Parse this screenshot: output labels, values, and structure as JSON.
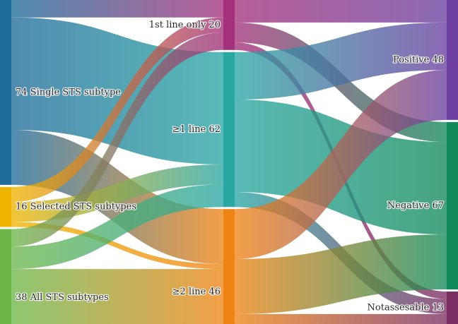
{
  "chart_data": {
    "type": "sankey",
    "title": "",
    "nodes": [
      {
        "id": "single",
        "label": "74 Single STS subtype",
        "column": 0,
        "value": 74,
        "color": "#1f6b9a"
      },
      {
        "id": "selected",
        "label": "16 Selected STS subtypes",
        "column": 0,
        "value": 16,
        "color": "#f0b400"
      },
      {
        "id": "all",
        "label": "38 All STS subtypes",
        "column": 0,
        "value": 38,
        "color": "#6db74a"
      },
      {
        "id": "first",
        "label": "1st line only 20",
        "column": 1,
        "value": 20,
        "color": "#a3307a"
      },
      {
        "id": "ge1",
        "label": "≥1 line 62",
        "column": 1,
        "value": 62,
        "color": "#2aa6a3"
      },
      {
        "id": "ge2",
        "label": "≥2 line 46",
        "column": 1,
        "value": 46,
        "color": "#ee8414"
      },
      {
        "id": "pos",
        "label": "Positive 48",
        "column": 2,
        "value": 48,
        "color": "#6a3fa0"
      },
      {
        "id": "neg",
        "label": "Negative 67",
        "column": 2,
        "value": 67,
        "color": "#138a5a"
      },
      {
        "id": "na",
        "label": "Notassesable 13",
        "column": 2,
        "value": 13,
        "color": "#7b2e62"
      }
    ],
    "links": [
      {
        "source": "single",
        "target": "first",
        "value": 7
      },
      {
        "source": "single",
        "target": "ge1",
        "value": 45
      },
      {
        "source": "single",
        "target": "ge2",
        "value": 22
      },
      {
        "source": "selected",
        "target": "first",
        "value": 6
      },
      {
        "source": "selected",
        "target": "ge1",
        "value": 8
      },
      {
        "source": "selected",
        "target": "ge2",
        "value": 2
      },
      {
        "source": "all",
        "target": "first",
        "value": 7
      },
      {
        "source": "all",
        "target": "ge1",
        "value": 9
      },
      {
        "source": "all",
        "target": "ge2",
        "value": 22
      },
      {
        "source": "first",
        "target": "pos",
        "value": 9
      },
      {
        "source": "first",
        "target": "neg",
        "value": 8
      },
      {
        "source": "first",
        "target": "na",
        "value": 3
      },
      {
        "source": "ge1",
        "target": "pos",
        "value": 19
      },
      {
        "source": "ge1",
        "target": "neg",
        "value": 37
      },
      {
        "source": "ge1",
        "target": "na",
        "value": 6
      },
      {
        "source": "ge2",
        "target": "pos",
        "value": 20
      },
      {
        "source": "ge2",
        "target": "neg",
        "value": 22
      },
      {
        "source": "ge2",
        "target": "na",
        "value": 4
      }
    ]
  }
}
